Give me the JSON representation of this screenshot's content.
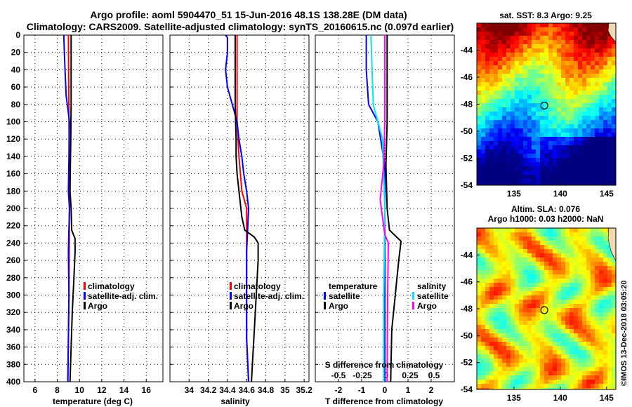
{
  "title_line1": "Argo profile: aoml 5904470_51 15-Jun-2016 48.1S 138.28E (DM data)",
  "title_line2": "Climatology: CARS2009. Satellite-adjusted climatology: synTS_20160615.nc (0.097d earlier)",
  "watermark": "©IMOS 13-Dec-2018 03:05:20",
  "colors": {
    "climatology": "#ff0000",
    "satellite": "#0000ff",
    "argo": "#000000",
    "sat_s": "#00e5ff",
    "clim_s": "#ff00ff",
    "marker": "#000000"
  },
  "chart_data": [
    {
      "id": "temperature",
      "type": "line",
      "xlabel": "temperature (deg C)",
      "ylabel": "depth",
      "xlim": [
        5,
        17.5
      ],
      "ylim": [
        0,
        400
      ],
      "xticks": [
        6,
        8,
        10,
        12,
        14,
        16
      ],
      "xtick_labels": [
        "6",
        "8",
        "10",
        "12",
        "14",
        "16"
      ],
      "yticks": [
        0,
        20,
        40,
        60,
        80,
        100,
        120,
        140,
        160,
        180,
        200,
        220,
        240,
        260,
        280,
        300,
        320,
        340,
        360,
        380,
        400
      ],
      "grid": true,
      "legend": {
        "position": "bottom-right",
        "entries": [
          "climatology",
          "satellite-adj. clim.",
          "Argo"
        ]
      },
      "series": [
        {
          "name": "climatology",
          "color": "climatology",
          "points": [
            [
              9.0,
              0
            ],
            [
              9.05,
              100
            ],
            [
              9.1,
              200
            ],
            [
              9.05,
              300
            ],
            [
              8.95,
              400
            ]
          ]
        },
        {
          "name": "satellite-adj. clim.",
          "color": "satellite",
          "points": [
            [
              8.6,
              0
            ],
            [
              8.6,
              5
            ],
            [
              8.7,
              40
            ],
            [
              8.8,
              70
            ],
            [
              9.0,
              90
            ],
            [
              9.1,
              100
            ],
            [
              9.05,
              140
            ],
            [
              9.0,
              180
            ],
            [
              9.1,
              200
            ],
            [
              9.0,
              250
            ],
            [
              9.05,
              300
            ],
            [
              8.95,
              400
            ]
          ]
        },
        {
          "name": "Argo",
          "color": "argo",
          "points": [
            [
              9.25,
              0
            ],
            [
              9.25,
              80
            ],
            [
              9.22,
              120
            ],
            [
              9.18,
              150
            ],
            [
              9.15,
              180
            ],
            [
              9.25,
              200
            ],
            [
              9.3,
              225
            ],
            [
              9.6,
              235
            ],
            [
              9.6,
              250
            ],
            [
              9.5,
              280
            ],
            [
              9.35,
              320
            ],
            [
              9.25,
              360
            ],
            [
              9.15,
              400
            ]
          ]
        }
      ]
    },
    {
      "id": "salinity",
      "type": "line",
      "xlabel": "salinity",
      "ylabel": "depth",
      "xlim": [
        33.8,
        35.25
      ],
      "ylim": [
        0,
        400
      ],
      "xticks": [
        34,
        34.2,
        34.4,
        34.6,
        34.8,
        35,
        35.2
      ],
      "xtick_labels": [
        "34",
        "34.2",
        "34.4",
        "34.6",
        "34.8",
        "35",
        "35.2"
      ],
      "yticks": [
        0,
        20,
        40,
        60,
        80,
        100,
        120,
        140,
        160,
        180,
        200,
        220,
        240,
        260,
        280,
        300,
        320,
        340,
        360,
        380,
        400
      ],
      "grid": true,
      "legend": {
        "position": "bottom-right",
        "entries": [
          "climatology",
          "satellite-adj. clim.",
          "Argo"
        ]
      },
      "series": [
        {
          "name": "climatology",
          "color": "climatology",
          "points": [
            [
              34.5,
              0
            ],
            [
              34.5,
              60
            ],
            [
              34.5,
              100
            ],
            [
              34.52,
              140
            ],
            [
              34.55,
              180
            ],
            [
              34.6,
              200
            ],
            [
              34.6,
              250
            ],
            [
              34.6,
              300
            ],
            [
              34.6,
              350
            ],
            [
              34.62,
              400
            ]
          ]
        },
        {
          "name": "satellite-adj. clim.",
          "color": "satellite",
          "points": [
            [
              34.38,
              0
            ],
            [
              34.4,
              3
            ],
            [
              34.4,
              20
            ],
            [
              34.38,
              40
            ],
            [
              34.4,
              60
            ],
            [
              34.45,
              80
            ],
            [
              34.5,
              100
            ],
            [
              34.52,
              120
            ],
            [
              34.55,
              140
            ],
            [
              34.57,
              160
            ],
            [
              34.6,
              180
            ],
            [
              34.62,
              200
            ],
            [
              34.6,
              250
            ],
            [
              34.6,
              300
            ],
            [
              34.6,
              350
            ],
            [
              34.62,
              400
            ]
          ]
        },
        {
          "name": "Argo",
          "color": "argo",
          "points": [
            [
              34.48,
              0
            ],
            [
              34.48,
              80
            ],
            [
              34.49,
              120
            ],
            [
              34.49,
              140
            ],
            [
              34.5,
              160
            ],
            [
              34.52,
              180
            ],
            [
              34.55,
              210
            ],
            [
              34.58,
              225
            ],
            [
              34.68,
              233
            ],
            [
              34.72,
              240
            ],
            [
              34.72,
              260
            ],
            [
              34.7,
              300
            ],
            [
              34.68,
              340
            ],
            [
              34.66,
              380
            ],
            [
              34.65,
              400
            ]
          ]
        }
      ]
    },
    {
      "id": "difference",
      "type": "line",
      "xlabel": "T difference from climatology",
      "top_xlabel": "S difference from climatology",
      "ylabel": "depth",
      "xlim": [
        -3,
        3
      ],
      "ylim": [
        0,
        400
      ],
      "xticks": [
        -2,
        -1,
        0,
        1,
        2
      ],
      "xtick_labels": [
        "-2",
        "-1",
        "0",
        "1",
        "2"
      ],
      "top_xticks": [
        -0.5,
        -0.25,
        0,
        0.25,
        0.5
      ],
      "top_xtick_labels": [
        "-0.5",
        "-0.25",
        "0",
        "0.25",
        "0.5"
      ],
      "yticks": [
        0,
        20,
        40,
        60,
        80,
        100,
        120,
        140,
        160,
        180,
        200,
        220,
        240,
        260,
        280,
        300,
        320,
        340,
        360,
        380,
        400
      ],
      "grid": true,
      "zero_line": "dotted",
      "legend": {
        "position": "bottom",
        "groups": [
          {
            "title": "temperature",
            "entries": [
              "satellite",
              "Argo"
            ]
          },
          {
            "title": "salinity",
            "entries": [
              "satellite",
              "Argo"
            ]
          }
        ]
      },
      "series": [
        {
          "name": "T satellite",
          "color": "satellite",
          "points": [
            [
              -0.8,
              0
            ],
            [
              -0.8,
              40
            ],
            [
              -0.7,
              80
            ],
            [
              -0.3,
              100
            ],
            [
              0,
              150
            ],
            [
              0,
              400
            ]
          ]
        },
        {
          "name": "T Argo",
          "color": "argo",
          "points": [
            [
              0.1,
              0
            ],
            [
              0.1,
              100
            ],
            [
              0.05,
              150
            ],
            [
              0.1,
              200
            ],
            [
              0.2,
              225
            ],
            [
              0.7,
              238
            ],
            [
              0.6,
              260
            ],
            [
              0.45,
              300
            ],
            [
              0.3,
              340
            ],
            [
              0.25,
              400
            ]
          ]
        },
        {
          "name": "S satellite",
          "color": "sat_s",
          "points": [
            [
              -0.6,
              0
            ],
            [
              -0.55,
              40
            ],
            [
              -0.5,
              80
            ],
            [
              -0.1,
              120
            ],
            [
              0,
              200
            ],
            [
              -0.05,
              300
            ],
            [
              -0.05,
              400
            ]
          ]
        },
        {
          "name": "S Argo",
          "color": "clim_s",
          "points": [
            [
              0,
              0
            ],
            [
              0,
              100
            ],
            [
              -0.05,
              150
            ],
            [
              -0.2,
              190
            ],
            [
              -0.1,
              210
            ],
            [
              0,
              230
            ],
            [
              0.15,
              240
            ],
            [
              0.12,
              300
            ],
            [
              0.1,
              400
            ]
          ]
        }
      ]
    },
    {
      "id": "sst_map",
      "type": "heatmap",
      "title": "sat. SST: 8.3 Argo: 9.25",
      "xlim": [
        131,
        146
      ],
      "ylim": [
        -54,
        -42
      ],
      "xticks": [
        135,
        140,
        145
      ],
      "xtick_labels": [
        "135",
        "140",
        "145"
      ],
      "yticks": [
        -44,
        -46,
        -48,
        -50,
        -52,
        -54
      ],
      "ytick_labels": [
        "-44",
        "-46",
        "-48",
        "-50",
        "-52",
        "-54"
      ],
      "marker": {
        "lon": 138.28,
        "lat": -48.1
      }
    },
    {
      "id": "sla_map",
      "type": "heatmap",
      "title_line1": "Altim. SLA: 0.076",
      "title_line2": "Argo h1000: 0.03 h2000: NaN",
      "xlim": [
        131,
        146
      ],
      "ylim": [
        -54,
        -42
      ],
      "xticks": [
        135,
        140,
        145
      ],
      "xtick_labels": [
        "135",
        "140",
        "145"
      ],
      "yticks": [
        -44,
        -46,
        -48,
        -50,
        -52,
        -54
      ],
      "ytick_labels": [
        "-44",
        "-46",
        "-48",
        "-50",
        "-52",
        "-54"
      ],
      "marker": {
        "lon": 138.28,
        "lat": -48.1
      }
    }
  ]
}
